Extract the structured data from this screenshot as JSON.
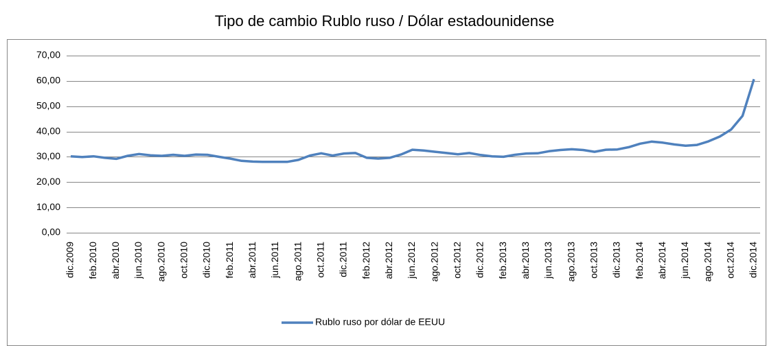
{
  "chart_data": {
    "type": "line",
    "title": "Tipo de cambio Rublo ruso / Dólar estadounidense",
    "categories": [
      "dic.2009",
      null,
      "feb.2010",
      null,
      "abr.2010",
      null,
      "jun.2010",
      null,
      "ago.2010",
      null,
      "oct.2010",
      null,
      "dic.2010",
      null,
      "feb.2011",
      null,
      "abr.2011",
      null,
      "jun.2011",
      null,
      "ago.2011",
      null,
      "oct.2011",
      null,
      "dic.2011",
      null,
      "feb.2012",
      null,
      "abr.2012",
      null,
      "jun.2012",
      null,
      "ago.2012",
      null,
      "oct.2012",
      null,
      "dic.2012",
      null,
      "feb.2013",
      null,
      "abr.2013",
      null,
      "jun.2013",
      null,
      "ago.2013",
      null,
      "oct.2013",
      null,
      "dic.2013",
      null,
      "feb.2014",
      null,
      "abr.2014",
      null,
      "jun.2014",
      null,
      "ago.2014",
      null,
      "oct.2014",
      null,
      "dic.2014"
    ],
    "series": [
      {
        "name": "Rublo ruso por dólar de EEUU",
        "color": "#4f81bd",
        "values": [
          30.2,
          29.9,
          30.2,
          29.6,
          29.2,
          30.4,
          31.1,
          30.6,
          30.4,
          30.8,
          30.4,
          30.9,
          30.8,
          30.0,
          29.3,
          28.4,
          28.1,
          28.0,
          28.0,
          28.0,
          28.8,
          30.5,
          31.4,
          30.5,
          31.3,
          31.5,
          29.6,
          29.3,
          29.6,
          30.9,
          32.8,
          32.5,
          32.0,
          31.5,
          31.0,
          31.5,
          30.7,
          30.2,
          30.0,
          30.8,
          31.3,
          31.4,
          32.2,
          32.7,
          33.0,
          32.7,
          32.0,
          32.8,
          32.9,
          33.8,
          35.2,
          36.0,
          35.6,
          34.9,
          34.4,
          34.7,
          36.1,
          38.0,
          40.8,
          46.2,
          60.7
        ]
      }
    ],
    "ylim": [
      0,
      70
    ],
    "yticks": [
      {
        "value": 0,
        "label": "0,00"
      },
      {
        "value": 10,
        "label": "10,00"
      },
      {
        "value": 20,
        "label": "20,00"
      },
      {
        "value": 30,
        "label": "30,00"
      },
      {
        "value": 40,
        "label": "40,00"
      },
      {
        "value": 50,
        "label": "50,00"
      },
      {
        "value": 60,
        "label": "60,00"
      },
      {
        "value": 70,
        "label": "70,00"
      }
    ],
    "grid": true,
    "legend": "bottom"
  }
}
